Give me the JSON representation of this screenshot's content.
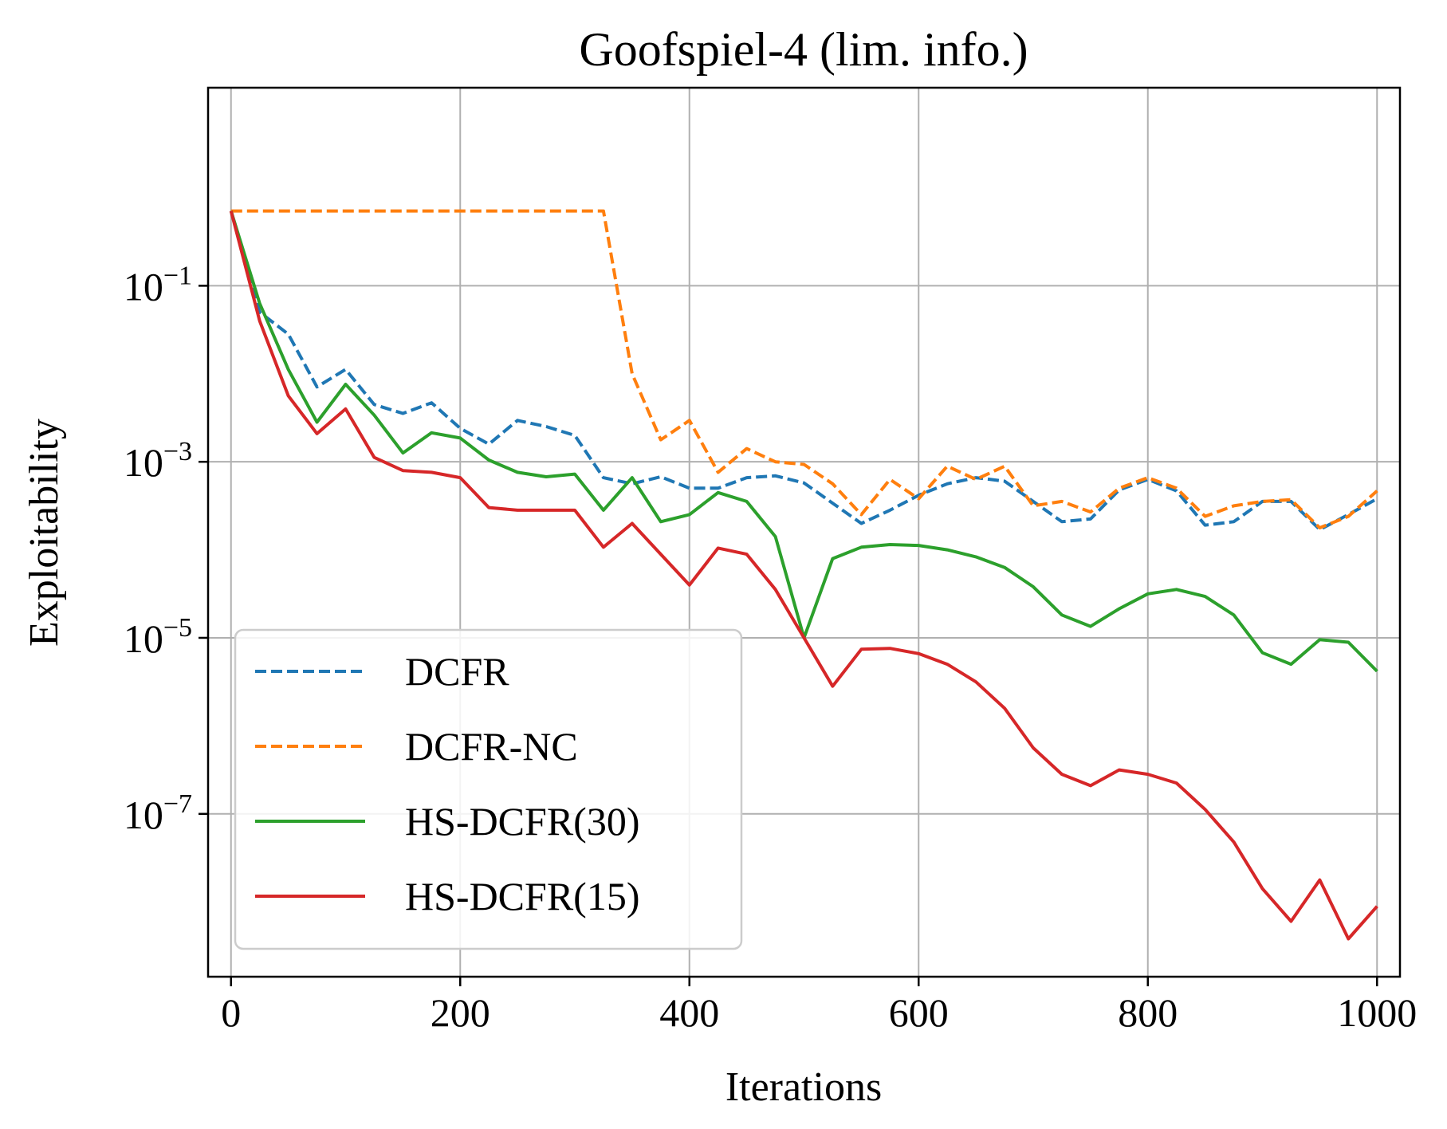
{
  "chart_data": {
    "type": "line",
    "title": "Goofspiel-4 (lim. info.)",
    "xlabel": "Iterations",
    "ylabel": "Exploitability",
    "yscale": "log",
    "xlim": [
      -20,
      1020
    ],
    "ylim_log10": [
      -8.85,
      1.25
    ],
    "xticks": [
      {
        "value": 0,
        "label": "0"
      },
      {
        "value": 200,
        "label": "200"
      },
      {
        "value": 400,
        "label": "400"
      },
      {
        "value": 600,
        "label": "600"
      },
      {
        "value": 800,
        "label": "800"
      },
      {
        "value": 1000,
        "label": "1000"
      }
    ],
    "yticks": [
      {
        "exp": -1,
        "base": "10",
        "sup": "−1"
      },
      {
        "exp": -3,
        "base": "10",
        "sup": "−3"
      },
      {
        "exp": -5,
        "base": "10",
        "sup": "−5"
      },
      {
        "exp": -7,
        "base": "10",
        "sup": "−7"
      }
    ],
    "grid": true,
    "legend_position": "lower-left",
    "x": [
      0,
      25,
      50,
      75,
      100,
      125,
      150,
      175,
      200,
      225,
      250,
      275,
      300,
      325,
      350,
      375,
      400,
      425,
      450,
      475,
      500,
      525,
      550,
      575,
      600,
      625,
      650,
      675,
      700,
      725,
      750,
      775,
      800,
      825,
      850,
      875,
      900,
      925,
      950,
      975,
      1000
    ],
    "series": [
      {
        "name": "DCFR",
        "color": "#1f77b4",
        "dash": true,
        "log10_values": [
          -0.15,
          -1.3,
          -1.55,
          -2.15,
          -1.95,
          -2.35,
          -2.45,
          -2.33,
          -2.62,
          -2.8,
          -2.53,
          -2.6,
          -2.7,
          -3.18,
          -3.25,
          -3.17,
          -3.3,
          -3.3,
          -3.18,
          -3.16,
          -3.24,
          -3.47,
          -3.7,
          -3.55,
          -3.38,
          -3.25,
          -3.18,
          -3.22,
          -3.45,
          -3.68,
          -3.65,
          -3.32,
          -3.2,
          -3.33,
          -3.72,
          -3.68,
          -3.45,
          -3.45,
          -3.77,
          -3.6,
          -3.42
        ]
      },
      {
        "name": "DCFR-NC",
        "color": "#ff7f0e",
        "dash": true,
        "log10_values": [
          -0.15,
          -0.15,
          -0.15,
          -0.15,
          -0.15,
          -0.15,
          -0.15,
          -0.15,
          -0.15,
          -0.15,
          -0.15,
          -0.15,
          -0.15,
          -0.15,
          -2.0,
          -2.75,
          -2.53,
          -3.12,
          -2.85,
          -3.0,
          -3.03,
          -3.25,
          -3.6,
          -3.2,
          -3.42,
          -3.05,
          -3.2,
          -3.05,
          -3.5,
          -3.45,
          -3.57,
          -3.3,
          -3.18,
          -3.3,
          -3.62,
          -3.5,
          -3.45,
          -3.43,
          -3.75,
          -3.62,
          -3.33
        ]
      },
      {
        "name": "HS-DCFR(30)",
        "color": "#2ca02c",
        "dash": false,
        "log10_values": [
          -0.15,
          -1.2,
          -1.95,
          -2.55,
          -2.12,
          -2.47,
          -2.9,
          -2.67,
          -2.73,
          -2.98,
          -3.12,
          -3.17,
          -3.14,
          -3.55,
          -3.18,
          -3.68,
          -3.6,
          -3.35,
          -3.45,
          -3.85,
          -5.0,
          -4.1,
          -3.97,
          -3.94,
          -3.95,
          -4.0,
          -4.08,
          -4.2,
          -4.42,
          -4.74,
          -4.87,
          -4.67,
          -4.5,
          -4.45,
          -4.53,
          -4.74,
          -5.17,
          -5.3,
          -5.02,
          -5.05,
          -5.38
        ]
      },
      {
        "name": "HS-DCFR(15)",
        "color": "#d62728",
        "dash": false,
        "log10_values": [
          -0.15,
          -1.4,
          -2.25,
          -2.68,
          -2.4,
          -2.95,
          -3.1,
          -3.12,
          -3.18,
          -3.52,
          -3.55,
          -3.55,
          -3.55,
          -3.97,
          -3.7,
          -4.05,
          -4.4,
          -3.98,
          -4.05,
          -4.45,
          -5.0,
          -5.55,
          -5.13,
          -5.12,
          -5.18,
          -5.3,
          -5.5,
          -5.8,
          -6.25,
          -6.55,
          -6.68,
          -6.5,
          -6.55,
          -6.65,
          -6.95,
          -7.32,
          -7.85,
          -8.22,
          -7.75,
          -8.42,
          -8.05
        ]
      }
    ]
  }
}
